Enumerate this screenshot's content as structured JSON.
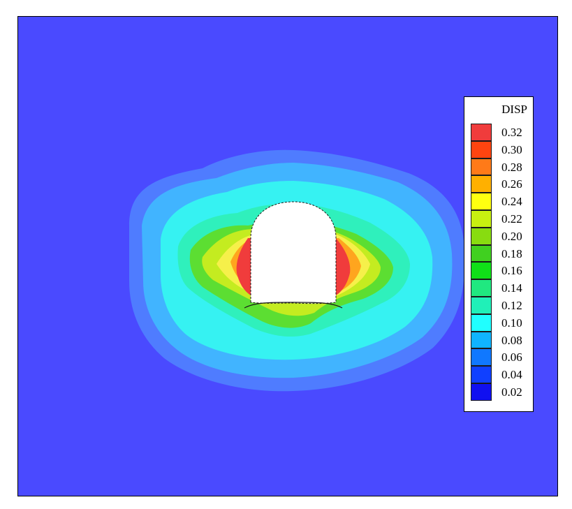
{
  "legend": {
    "title": "DISP",
    "items": [
      {
        "label": "0.32",
        "color": "#f03c3c"
      },
      {
        "label": "0.30",
        "color": "#ff4410"
      },
      {
        "label": "0.28",
        "color": "#ff7a18"
      },
      {
        "label": "0.26",
        "color": "#ffb000"
      },
      {
        "label": "0.24",
        "color": "#ffff10"
      },
      {
        "label": "0.22",
        "color": "#c8f010"
      },
      {
        "label": "0.20",
        "color": "#88dc10"
      },
      {
        "label": "0.18",
        "color": "#40d020"
      },
      {
        "label": "0.16",
        "color": "#10e018"
      },
      {
        "label": "0.14",
        "color": "#20e880"
      },
      {
        "label": "0.12",
        "color": "#20f0b8"
      },
      {
        "label": "0.10",
        "color": "#20ffff"
      },
      {
        "label": "0.08",
        "color": "#10b4ff"
      },
      {
        "label": "0.06",
        "color": "#1078ff"
      },
      {
        "label": "0.04",
        "color": "#1040ff"
      },
      {
        "label": "0.02",
        "color": "#1010f0"
      }
    ]
  },
  "colors": {
    "background_field": "#4a4aff",
    "opening": "#ffffff",
    "frame": "#000000"
  }
}
